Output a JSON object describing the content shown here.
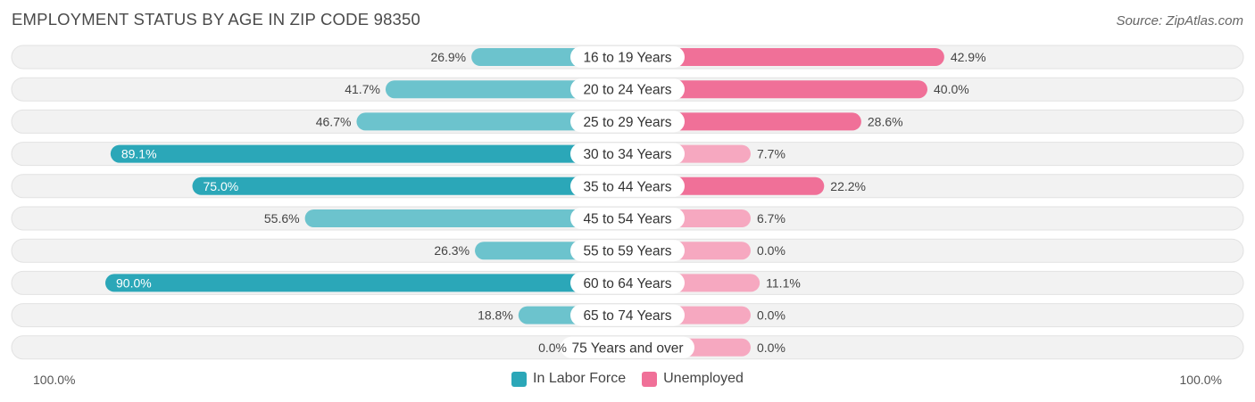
{
  "title": "EMPLOYMENT STATUS BY AGE IN ZIP CODE 98350",
  "source": "Source: ZipAtlas.com",
  "axis": {
    "left_label": "100.0%",
    "right_label": "100.0%"
  },
  "legend": [
    {
      "label": "In Labor Force",
      "color": "#2ba7b8"
    },
    {
      "label": "Unemployed",
      "color": "#f07098"
    }
  ],
  "colors": {
    "labor_strong": "#2ba7b8",
    "labor_light": "#6cc3cd",
    "unemp_strong": "#f07098",
    "unemp_light": "#f6a8c0",
    "row_bg": "#f2f2f2",
    "row_border": "#e2e2e2"
  },
  "chart_data": {
    "type": "bar",
    "orientation": "horizontal-diverging",
    "title": "EMPLOYMENT STATUS BY AGE IN ZIP CODE 98350",
    "xlim": [
      -100,
      100
    ],
    "categories": [
      "16 to 19 Years",
      "20 to 24 Years",
      "25 to 29 Years",
      "30 to 34 Years",
      "35 to 44 Years",
      "45 to 54 Years",
      "55 to 59 Years",
      "60 to 64 Years",
      "65 to 74 Years",
      "75 Years and over"
    ],
    "series": [
      {
        "name": "In Labor Force",
        "values": [
          26.9,
          41.7,
          46.7,
          89.1,
          75.0,
          55.6,
          26.3,
          90.0,
          18.8,
          0.0
        ],
        "labels": [
          "26.9%",
          "41.7%",
          "46.7%",
          "89.1%",
          "75.0%",
          "55.6%",
          "26.3%",
          "90.0%",
          "18.8%",
          "0.0%"
        ]
      },
      {
        "name": "Unemployed",
        "values": [
          42.9,
          40.0,
          28.6,
          7.7,
          22.2,
          6.7,
          0.0,
          11.1,
          0.0,
          0.0
        ],
        "labels": [
          "42.9%",
          "40.0%",
          "28.6%",
          "7.7%",
          "22.2%",
          "6.7%",
          "0.0%",
          "11.1%",
          "0.0%",
          "0.0%"
        ]
      }
    ]
  }
}
